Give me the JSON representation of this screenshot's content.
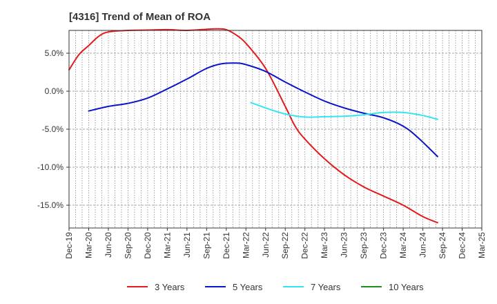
{
  "chart_data": {
    "type": "line",
    "title": "[4316]  Trend of Mean of ROA",
    "xlabel": "",
    "ylabel": "",
    "ylim": [
      -18.0,
      8.0
    ],
    "grid": true,
    "x_tick_labels": [
      "Dec-19",
      "Mar-20",
      "Jun-20",
      "Sep-20",
      "Dec-20",
      "Mar-21",
      "Jun-21",
      "Sep-21",
      "Dec-21",
      "Mar-22",
      "Jun-22",
      "Sep-22",
      "Dec-22",
      "Mar-23",
      "Jun-23",
      "Sep-23",
      "Dec-23",
      "Mar-24",
      "Jun-24",
      "Sep-24",
      "Dec-24",
      "Mar-25"
    ],
    "y_ticks": [
      {
        "value": 5,
        "label": "5.0%"
      },
      {
        "value": 0,
        "label": "0.0%"
      },
      {
        "value": -5,
        "label": "-5.0%"
      },
      {
        "value": -10,
        "label": "-10.0%"
      },
      {
        "value": -15,
        "label": "-15.0%"
      }
    ],
    "legend_position": "bottom",
    "series": [
      {
        "name": "3 Years",
        "color": "#e31a1c",
        "points": [
          [
            0,
            2.8
          ],
          [
            0.5,
            4.8
          ],
          [
            1,
            6.0
          ],
          [
            1.5,
            7.2
          ],
          [
            2,
            7.8
          ],
          [
            3,
            8.0
          ],
          [
            4,
            8.05
          ],
          [
            5,
            8.1
          ],
          [
            6,
            8.0
          ],
          [
            7,
            8.15
          ],
          [
            7.5,
            8.2
          ],
          [
            8,
            8.1
          ],
          [
            8.5,
            7.4
          ],
          [
            9,
            6.3
          ],
          [
            10,
            3.0
          ],
          [
            11,
            -2.0
          ],
          [
            11.5,
            -4.6
          ],
          [
            12,
            -6.3
          ],
          [
            13,
            -8.9
          ],
          [
            14,
            -11.0
          ],
          [
            15,
            -12.6
          ],
          [
            16,
            -13.8
          ],
          [
            17,
            -15.0
          ],
          [
            18,
            -16.5
          ],
          [
            18.75,
            -17.3
          ]
        ]
      },
      {
        "name": "5 Years",
        "color": "#0a14c8",
        "points": [
          [
            1,
            -2.6
          ],
          [
            2,
            -2.0
          ],
          [
            3,
            -1.6
          ],
          [
            4,
            -0.9
          ],
          [
            5,
            0.3
          ],
          [
            6,
            1.6
          ],
          [
            7,
            3.0
          ],
          [
            7.75,
            3.6
          ],
          [
            8.5,
            3.7
          ],
          [
            9,
            3.5
          ],
          [
            10,
            2.6
          ],
          [
            11,
            1.2
          ],
          [
            12,
            -0.1
          ],
          [
            13,
            -1.3
          ],
          [
            14,
            -2.2
          ],
          [
            15,
            -2.9
          ],
          [
            16,
            -3.5
          ],
          [
            17,
            -4.6
          ],
          [
            17.75,
            -6.1
          ],
          [
            18.75,
            -8.6
          ]
        ]
      },
      {
        "name": "7 Years",
        "color": "#33e5f0",
        "points": [
          [
            9.25,
            -1.5
          ],
          [
            10,
            -2.2
          ],
          [
            11,
            -3.0
          ],
          [
            12,
            -3.4
          ],
          [
            13,
            -3.35
          ],
          [
            14,
            -3.3
          ],
          [
            15,
            -3.1
          ],
          [
            16,
            -2.8
          ],
          [
            17,
            -2.8
          ],
          [
            18,
            -3.2
          ],
          [
            18.75,
            -3.7
          ]
        ]
      },
      {
        "name": "10 Years",
        "color": "#1e8c1e",
        "points": []
      }
    ]
  }
}
